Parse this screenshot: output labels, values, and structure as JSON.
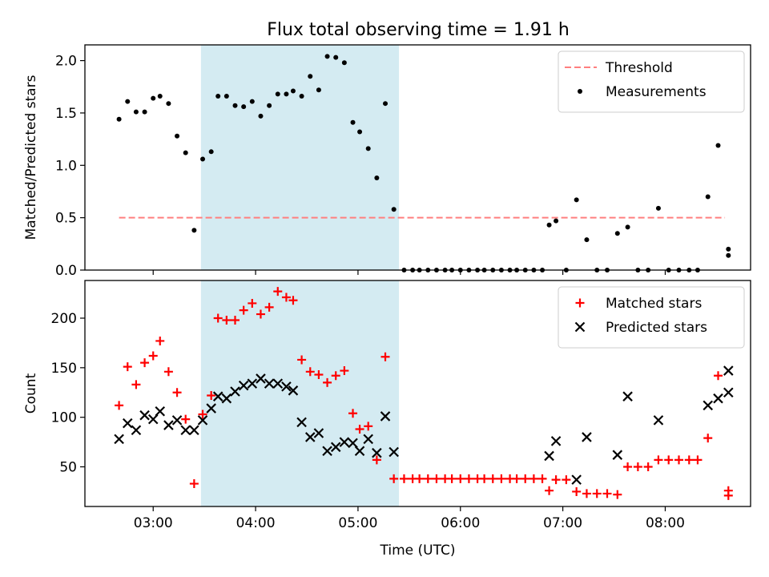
{
  "title": "Flux total observing time = 1.91 h",
  "chart_data": [
    {
      "type": "scatter",
      "panel": "top",
      "ylabel": "Matched/Predicted stars",
      "xlabel": "",
      "ylim": [
        0,
        2.15
      ],
      "xlim": [
        "02:20",
        "08:50"
      ],
      "yticks": [
        0.0,
        0.5,
        1.0,
        1.5,
        2.0
      ],
      "ytick_labels": [
        "0.0",
        "0.5",
        "1.0",
        "1.5",
        "2.0"
      ],
      "shaded_span": [
        "03:28",
        "05:24"
      ],
      "legend_position": "upper right",
      "threshold": {
        "name": "Threshold",
        "value": 0.5,
        "x_range": [
          "02:40",
          "08:35"
        ],
        "color": "#ff7f7f"
      },
      "series": [
        {
          "name": "Measurements",
          "marker": "dot",
          "color": "#000000",
          "points": [
            [
              "02:40",
              1.44
            ],
            [
              "02:45",
              1.61
            ],
            [
              "02:50",
              1.51
            ],
            [
              "02:55",
              1.51
            ],
            [
              "03:00",
              1.64
            ],
            [
              "03:04",
              1.66
            ],
            [
              "03:09",
              1.59
            ],
            [
              "03:14",
              1.28
            ],
            [
              "03:19",
              1.12
            ],
            [
              "03:24",
              0.38
            ],
            [
              "03:29",
              1.06
            ],
            [
              "03:34",
              1.13
            ],
            [
              "03:38",
              1.66
            ],
            [
              "03:43",
              1.66
            ],
            [
              "03:48",
              1.57
            ],
            [
              "03:53",
              1.56
            ],
            [
              "03:58",
              1.61
            ],
            [
              "04:03",
              1.47
            ],
            [
              "04:08",
              1.57
            ],
            [
              "04:13",
              1.68
            ],
            [
              "04:18",
              1.68
            ],
            [
              "04:22",
              1.71
            ],
            [
              "04:27",
              1.66
            ],
            [
              "04:32",
              1.85
            ],
            [
              "04:37",
              1.72
            ],
            [
              "04:42",
              2.04
            ],
            [
              "04:47",
              2.03
            ],
            [
              "04:52",
              1.98
            ],
            [
              "04:57",
              1.41
            ],
            [
              "05:01",
              1.32
            ],
            [
              "05:06",
              1.16
            ],
            [
              "05:11",
              0.88
            ],
            [
              "05:16",
              1.59
            ],
            [
              "05:21",
              0.58
            ],
            [
              "05:27",
              0.0
            ],
            [
              "05:32",
              0.0
            ],
            [
              "05:36",
              0.0
            ],
            [
              "05:41",
              0.0
            ],
            [
              "05:46",
              0.0
            ],
            [
              "05:51",
              0.0
            ],
            [
              "05:55",
              0.0
            ],
            [
              "06:00",
              0.0
            ],
            [
              "06:05",
              0.0
            ],
            [
              "06:10",
              0.0
            ],
            [
              "06:14",
              0.0
            ],
            [
              "06:19",
              0.0
            ],
            [
              "06:24",
              0.0
            ],
            [
              "06:29",
              0.0
            ],
            [
              "06:33",
              0.0
            ],
            [
              "06:38",
              0.0
            ],
            [
              "06:43",
              0.0
            ],
            [
              "06:48",
              0.0
            ],
            [
              "06:52",
              0.43
            ],
            [
              "06:56",
              0.47
            ],
            [
              "07:02",
              0.0
            ],
            [
              "07:08",
              0.67
            ],
            [
              "07:14",
              0.29
            ],
            [
              "07:20",
              0.0
            ],
            [
              "07:26",
              0.0
            ],
            [
              "07:32",
              0.35
            ],
            [
              "07:38",
              0.41
            ],
            [
              "07:44",
              0.0
            ],
            [
              "07:50",
              0.0
            ],
            [
              "07:56",
              0.59
            ],
            [
              "08:02",
              0.0
            ],
            [
              "08:08",
              0.0
            ],
            [
              "08:14",
              0.0
            ],
            [
              "08:19",
              0.0
            ],
            [
              "08:25",
              0.7
            ],
            [
              "08:31",
              1.19
            ],
            [
              "08:37",
              0.2
            ],
            [
              "08:37",
              0.14
            ]
          ]
        }
      ]
    },
    {
      "type": "scatter",
      "panel": "bottom",
      "ylabel": "Count",
      "xlabel": "Time (UTC)",
      "ylim": [
        10,
        238
      ],
      "xlim": [
        "02:20",
        "08:50"
      ],
      "yticks": [
        50,
        100,
        150,
        200
      ],
      "ytick_labels": [
        "50",
        "100",
        "150",
        "200"
      ],
      "xticks": [
        "03:00",
        "04:00",
        "05:00",
        "06:00",
        "07:00",
        "08:00"
      ],
      "xtick_labels": [
        "03:00",
        "04:00",
        "05:00",
        "06:00",
        "07:00",
        "08:00"
      ],
      "shaded_span": [
        "03:28",
        "05:24"
      ],
      "legend_position": "upper right",
      "series": [
        {
          "name": "Matched stars",
          "marker": "plus",
          "color": "#ff0000",
          "points": [
            [
              "02:40",
              112
            ],
            [
              "02:45",
              151
            ],
            [
              "02:50",
              133
            ],
            [
              "02:55",
              155
            ],
            [
              "03:00",
              162
            ],
            [
              "03:04",
              177
            ],
            [
              "03:09",
              146
            ],
            [
              "03:14",
              125
            ],
            [
              "03:19",
              98
            ],
            [
              "03:24",
              33
            ],
            [
              "03:29",
              103
            ],
            [
              "03:34",
              122
            ],
            [
              "03:38",
              200
            ],
            [
              "03:43",
              198
            ],
            [
              "03:48",
              198
            ],
            [
              "03:53",
              208
            ],
            [
              "03:58",
              215
            ],
            [
              "04:03",
              204
            ],
            [
              "04:08",
              211
            ],
            [
              "04:13",
              227
            ],
            [
              "04:18",
              221
            ],
            [
              "04:22",
              218
            ],
            [
              "04:27",
              158
            ],
            [
              "04:32",
              146
            ],
            [
              "04:37",
              143
            ],
            [
              "04:42",
              135
            ],
            [
              "04:47",
              142
            ],
            [
              "04:52",
              147
            ],
            [
              "04:57",
              104
            ],
            [
              "05:01",
              88
            ],
            [
              "05:06",
              91
            ],
            [
              "05:11",
              57
            ],
            [
              "05:16",
              161
            ],
            [
              "05:21",
              38
            ],
            [
              "05:27",
              38
            ],
            [
              "05:32",
              38
            ],
            [
              "05:36",
              38
            ],
            [
              "05:41",
              38
            ],
            [
              "05:46",
              38
            ],
            [
              "05:51",
              38
            ],
            [
              "05:55",
              38
            ],
            [
              "06:00",
              38
            ],
            [
              "06:05",
              38
            ],
            [
              "06:10",
              38
            ],
            [
              "06:14",
              38
            ],
            [
              "06:19",
              38
            ],
            [
              "06:24",
              38
            ],
            [
              "06:29",
              38
            ],
            [
              "06:33",
              38
            ],
            [
              "06:38",
              38
            ],
            [
              "06:43",
              38
            ],
            [
              "06:48",
              38
            ],
            [
              "06:52",
              26
            ],
            [
              "06:56",
              37
            ],
            [
              "07:02",
              37
            ],
            [
              "07:08",
              25
            ],
            [
              "07:14",
              23
            ],
            [
              "07:20",
              23
            ],
            [
              "07:26",
              23
            ],
            [
              "07:32",
              22
            ],
            [
              "07:38",
              50
            ],
            [
              "07:44",
              50
            ],
            [
              "07:50",
              50
            ],
            [
              "07:56",
              57
            ],
            [
              "08:02",
              57
            ],
            [
              "08:08",
              57
            ],
            [
              "08:14",
              57
            ],
            [
              "08:19",
              57
            ],
            [
              "08:25",
              79
            ],
            [
              "08:31",
              142
            ],
            [
              "08:37",
              26
            ],
            [
              "08:37",
              21
            ]
          ]
        },
        {
          "name": "Predicted stars",
          "marker": "x",
          "color": "#000000",
          "points": [
            [
              "02:40",
              78
            ],
            [
              "02:45",
              94
            ],
            [
              "02:50",
              87
            ],
            [
              "02:55",
              102
            ],
            [
              "03:00",
              98
            ],
            [
              "03:04",
              106
            ],
            [
              "03:09",
              92
            ],
            [
              "03:14",
              97
            ],
            [
              "03:19",
              87
            ],
            [
              "03:24",
              87
            ],
            [
              "03:29",
              97
            ],
            [
              "03:34",
              109
            ],
            [
              "03:38",
              121
            ],
            [
              "03:43",
              119
            ],
            [
              "03:48",
              126
            ],
            [
              "03:53",
              132
            ],
            [
              "03:58",
              134
            ],
            [
              "04:03",
              139
            ],
            [
              "04:08",
              134
            ],
            [
              "04:13",
              134
            ],
            [
              "04:18",
              131
            ],
            [
              "04:22",
              127
            ],
            [
              "04:27",
              95
            ],
            [
              "04:32",
              80
            ],
            [
              "04:37",
              84
            ],
            [
              "04:42",
              66
            ],
            [
              "04:47",
              70
            ],
            [
              "04:52",
              75
            ],
            [
              "04:57",
              74
            ],
            [
              "05:01",
              66
            ],
            [
              "05:06",
              78
            ],
            [
              "05:11",
              64
            ],
            [
              "05:16",
              101
            ],
            [
              "05:21",
              65
            ],
            [
              "06:52",
              61
            ],
            [
              "06:56",
              76
            ],
            [
              "07:08",
              37
            ],
            [
              "07:14",
              80
            ],
            [
              "07:32",
              62
            ],
            [
              "07:38",
              121
            ],
            [
              "07:56",
              97
            ],
            [
              "08:25",
              112
            ],
            [
              "08:31",
              119
            ],
            [
              "08:37",
              147
            ],
            [
              "08:37",
              125
            ]
          ]
        }
      ]
    }
  ]
}
